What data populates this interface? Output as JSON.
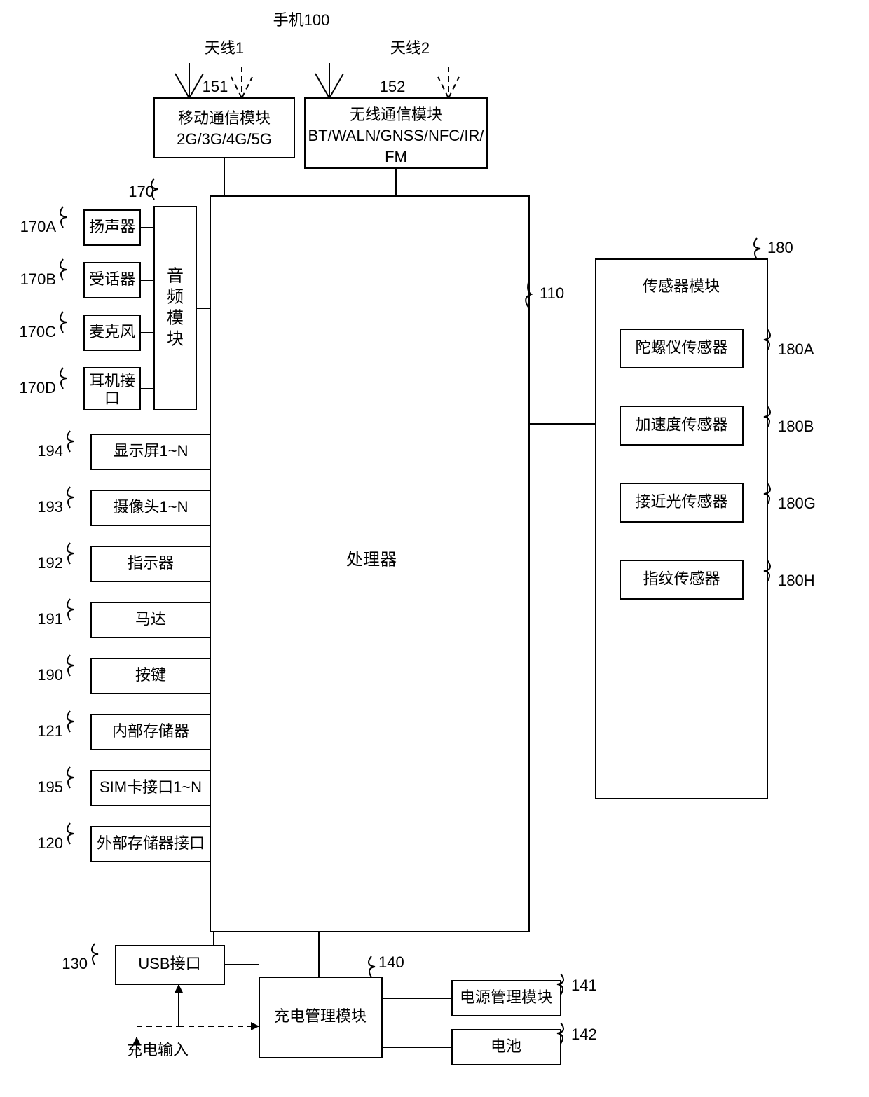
{
  "title": "手机100",
  "antenna1": {
    "label": "天线1",
    "ref": "151"
  },
  "antenna2": {
    "label": "天线2",
    "ref": "152"
  },
  "mobileComm": {
    "line1": "移动通信模块",
    "line2": "2G/3G/4G/5G"
  },
  "wirelessComm": {
    "line1": "无线通信模块",
    "line2": "BT/WALN/GNSS/NFC/IR/",
    "line3": "FM"
  },
  "processor": {
    "label": "处理器",
    "ref": "110"
  },
  "audio": {
    "module": "音频模块",
    "moduleRef": "170",
    "items": [
      {
        "ref": "170A",
        "label": "扬声器"
      },
      {
        "ref": "170B",
        "label": "受话器"
      },
      {
        "ref": "170C",
        "label": "麦克风"
      },
      {
        "ref": "170D",
        "label": "耳机接口"
      }
    ]
  },
  "leftStack": [
    {
      "ref": "194",
      "label": "显示屏1~N"
    },
    {
      "ref": "193",
      "label": "摄像头1~N"
    },
    {
      "ref": "192",
      "label": "指示器"
    },
    {
      "ref": "191",
      "label": "马达"
    },
    {
      "ref": "190",
      "label": "按键"
    },
    {
      "ref": "121",
      "label": "内部存储器"
    },
    {
      "ref": "195",
      "label": "SIM卡接口1~N"
    },
    {
      "ref": "120",
      "label": "外部存储器接口"
    }
  ],
  "usb": {
    "ref": "130",
    "label": "USB接口"
  },
  "chargeInput": "充电输入",
  "chargeMgmt": {
    "ref": "140",
    "label": "充电管理模块"
  },
  "powerMgmt": {
    "ref": "141",
    "label": "电源管理模块"
  },
  "battery": {
    "ref": "142",
    "label": "电池"
  },
  "sensorModule": {
    "ref": "180",
    "label": "传感器模块",
    "items": [
      {
        "ref": "180A",
        "label": "陀螺仪传感器"
      },
      {
        "ref": "180B",
        "label": "加速度传感器"
      },
      {
        "ref": "180G",
        "label": "接近光传感器"
      },
      {
        "ref": "180H",
        "label": "指纹传感器"
      }
    ]
  },
  "style": {
    "stroke": "#000000",
    "bg": "#ffffff",
    "fontSize": 22
  }
}
